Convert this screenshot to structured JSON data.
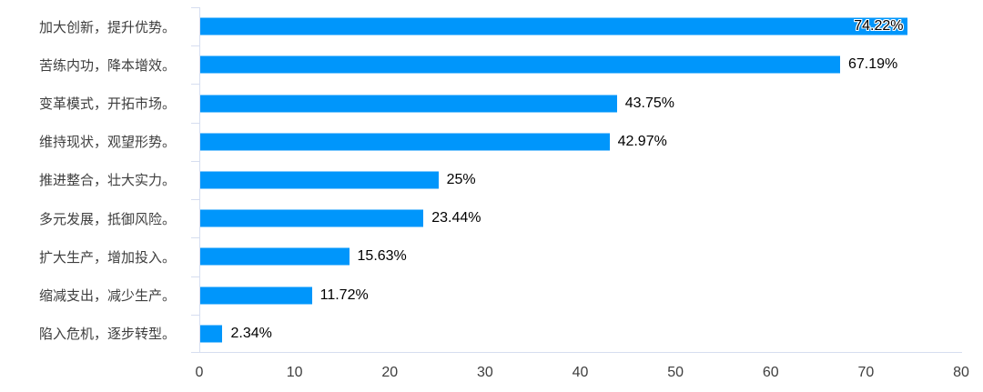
{
  "chart_data": {
    "type": "bar",
    "orientation": "horizontal",
    "title": "",
    "xlabel": "",
    "ylabel": "",
    "categories": [
      "加大创新，提升优势。",
      "苦练内功，降本增效。",
      "变革模式，开拓市场。",
      "维持现状，观望形势。",
      "推进整合，壮大实力。",
      "多元发展，抵御风险。",
      "扩大生产，增加投入。",
      "缩减支出，减少生产。",
      "陷入危机，逐步转型。"
    ],
    "values": [
      74.22,
      67.19,
      43.75,
      42.97,
      25,
      23.44,
      15.63,
      11.72,
      2.34
    ],
    "value_labels": [
      "74.22%",
      "67.19%",
      "43.75%",
      "42.97%",
      "25%",
      "23.44%",
      "15.63%",
      "11.72%",
      "2.34%"
    ],
    "xlim": [
      0,
      80
    ],
    "x_ticks": [
      0,
      10,
      20,
      30,
      40,
      50,
      60,
      70,
      80
    ],
    "grid": false,
    "legend": "none",
    "first_label_inside": true,
    "bar_color": "#0096FB",
    "axis_line_color": "#D6DEF0",
    "category_label_color": "#3E3E3E",
    "tick_label_color": "#3E3E3E",
    "value_label_color": "#000000",
    "background_color": "#FFFFFF"
  }
}
